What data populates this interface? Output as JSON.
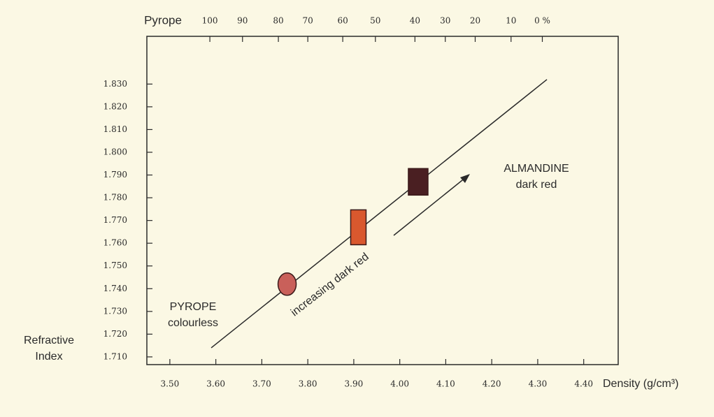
{
  "chart_data": {
    "type": "line",
    "x_label": "Density (g/cm³)",
    "y_label_lines": [
      "Refractive",
      "Index"
    ],
    "top_axis_label": "Pyrope",
    "xlim": [
      3.45,
      4.475
    ],
    "ylim": [
      1.7066,
      1.851
    ],
    "xticks": [
      {
        "value": 3.5,
        "label": "3.50"
      },
      {
        "value": 3.6,
        "label": "3.60"
      },
      {
        "value": 3.7,
        "label": "3.70"
      },
      {
        "value": 3.8,
        "label": "3.80"
      },
      {
        "value": 3.9,
        "label": "3.90"
      },
      {
        "value": 4.0,
        "label": "4.00"
      },
      {
        "value": 4.1,
        "label": "4.10"
      },
      {
        "value": 4.2,
        "label": "4.20"
      },
      {
        "value": 4.3,
        "label": "4.30"
      },
      {
        "value": 4.4,
        "label": "4.40"
      }
    ],
    "yticks": [
      {
        "value": 1.71,
        "label": "1.710"
      },
      {
        "value": 1.72,
        "label": "1.720"
      },
      {
        "value": 1.73,
        "label": "1.730"
      },
      {
        "value": 1.74,
        "label": "1.740"
      },
      {
        "value": 1.75,
        "label": "1.750"
      },
      {
        "value": 1.76,
        "label": "1.760"
      },
      {
        "value": 1.77,
        "label": "1.770"
      },
      {
        "value": 1.78,
        "label": "1.780"
      },
      {
        "value": 1.79,
        "label": "1.790"
      },
      {
        "value": 1.8,
        "label": "1.800"
      },
      {
        "value": 1.81,
        "label": "1.810"
      },
      {
        "value": 1.82,
        "label": "1.820"
      },
      {
        "value": 1.83,
        "label": "1.830"
      }
    ],
    "top_ticks": [
      {
        "value": 3.587,
        "label": "100"
      },
      {
        "value": 3.658,
        "label": "90"
      },
      {
        "value": 3.736,
        "label": "80"
      },
      {
        "value": 3.8,
        "label": "70"
      },
      {
        "value": 3.876,
        "label": "60"
      },
      {
        "value": 3.947,
        "label": "50"
      },
      {
        "value": 4.033,
        "label": "40"
      },
      {
        "value": 4.099,
        "label": "30"
      },
      {
        "value": 4.164,
        "label": "20"
      },
      {
        "value": 4.242,
        "label": "10"
      },
      {
        "value": 4.31,
        "label": "0 %"
      }
    ],
    "series": [
      {
        "color": "#2a2a2a",
        "x": [
          3.59,
          4.32
        ],
        "values": [
          1.714,
          1.832
        ]
      }
    ],
    "markers": [
      {
        "shape": "oval",
        "color": "#c9605a",
        "x": 3.755,
        "y": 1.742
      },
      {
        "shape": "rect",
        "color": "#d9582e",
        "x": 3.91,
        "y": 1.767
      },
      {
        "shape": "rect",
        "color": "#4a1f22",
        "x": 4.04,
        "y": 1.787
      }
    ],
    "annotations": {
      "pyrope": [
        "PYROPE",
        "colourless"
      ],
      "almandine": [
        "ALMANDINE",
        "dark red"
      ],
      "arrow": "increasing dark red"
    }
  }
}
